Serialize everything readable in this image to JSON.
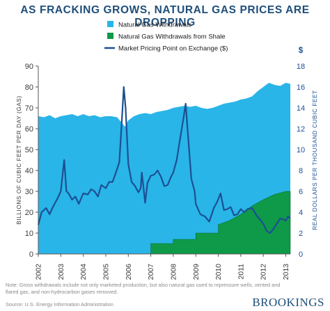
{
  "title": "AS FRACKING GROWS, NATURAL GAS PRICES ARE DROPPING",
  "legend": [
    {
      "label": "Natural Gas Withdrawals",
      "color": "#29b5e8",
      "kind": "box"
    },
    {
      "label": "Natural Gas Withdrawals from Shale",
      "color": "#0e9a48",
      "kind": "box"
    },
    {
      "label": "Market Pricing Point on Exchange ($)",
      "color": "#1c4f93",
      "kind": "line"
    }
  ],
  "footnote": "Note: Gross withdrawals include not only marketed production, but also natural gas used to repressure wells, vented and flared gas, and non-hydrocarbon gases removed.",
  "source": "Source: U.S. Energy Information Administration",
  "brand": "BROOKINGS",
  "chart_data": {
    "type": "area",
    "ylabel_left": "BILLIONS OF CUBIC FEET PER DAY (GAS)",
    "ylabel_right": "REAL DOLLARS PER THOUSAND CUBIC FEET",
    "right_axis_unit": "$",
    "xlim": [
      2002,
      2013.2
    ],
    "ylim_left": [
      0,
      90
    ],
    "ylim_right": [
      0,
      18
    ],
    "x_ticks": [
      "2002",
      "2003",
      "2004",
      "2005",
      "2006",
      "2007",
      "2008",
      "2009",
      "2010",
      "2011",
      "2012",
      "2013"
    ],
    "y_ticks_left": [
      0,
      10,
      20,
      30,
      40,
      50,
      60,
      70,
      80,
      90
    ],
    "y_ticks_right": [
      0,
      2,
      4,
      6,
      8,
      10,
      12,
      14,
      16,
      18
    ],
    "grid": false,
    "series": [
      {
        "name": "Natural Gas Withdrawals",
        "axis": "left",
        "color": "#29b5e8",
        "points": [
          [
            2002,
            66
          ],
          [
            2002.25,
            65.5
          ],
          [
            2002.5,
            66.5
          ],
          [
            2002.75,
            65
          ],
          [
            2003,
            66
          ],
          [
            2003.25,
            66.5
          ],
          [
            2003.5,
            67
          ],
          [
            2003.75,
            66
          ],
          [
            2004,
            67
          ],
          [
            2004.25,
            66
          ],
          [
            2004.5,
            66.5
          ],
          [
            2004.75,
            65.5
          ],
          [
            2005,
            66
          ],
          [
            2005.25,
            66
          ],
          [
            2005.5,
            65.5
          ],
          [
            2005.7,
            63
          ],
          [
            2005.85,
            61
          ],
          [
            2006,
            64
          ],
          [
            2006.25,
            66
          ],
          [
            2006.5,
            67
          ],
          [
            2006.75,
            67.5
          ],
          [
            2007,
            67
          ],
          [
            2007.25,
            68
          ],
          [
            2007.5,
            68.5
          ],
          [
            2007.75,
            69
          ],
          [
            2008,
            70
          ],
          [
            2008.25,
            70.5
          ],
          [
            2008.5,
            71
          ],
          [
            2008.75,
            70.5
          ],
          [
            2009,
            71
          ],
          [
            2009.25,
            70
          ],
          [
            2009.5,
            69.5
          ],
          [
            2009.75,
            70
          ],
          [
            2010,
            71
          ],
          [
            2010.25,
            72
          ],
          [
            2010.5,
            72.5
          ],
          [
            2010.75,
            73
          ],
          [
            2011,
            74
          ],
          [
            2011.25,
            74.5
          ],
          [
            2011.5,
            75.5
          ],
          [
            2011.75,
            78
          ],
          [
            2012,
            80
          ],
          [
            2012.25,
            82
          ],
          [
            2012.5,
            81
          ],
          [
            2012.75,
            80.5
          ],
          [
            2013,
            82
          ],
          [
            2013.2,
            81.5
          ]
        ]
      },
      {
        "name": "Natural Gas Withdrawals from Shale",
        "axis": "left",
        "color": "#0e9a48",
        "points": [
          [
            2007,
            0
          ],
          [
            2007,
            5
          ],
          [
            2008,
            5
          ],
          [
            2008,
            7
          ],
          [
            2009,
            7
          ],
          [
            2009,
            10
          ],
          [
            2010,
            10
          ],
          [
            2010,
            14
          ],
          [
            2010.5,
            16
          ],
          [
            2011,
            19
          ],
          [
            2011.5,
            23
          ],
          [
            2012,
            26
          ],
          [
            2012.5,
            28.5
          ],
          [
            2013,
            30
          ],
          [
            2013.2,
            30
          ]
        ]
      },
      {
        "name": "Market Pricing Point on Exchange ($)",
        "axis": "right",
        "color": "#1c4f93",
        "points": [
          [
            2002,
            2.8
          ],
          [
            2002.15,
            4
          ],
          [
            2002.35,
            4.4
          ],
          [
            2002.5,
            3.8
          ],
          [
            2002.65,
            4.5
          ],
          [
            2002.85,
            5.3
          ],
          [
            2003,
            6
          ],
          [
            2003.15,
            9
          ],
          [
            2003.25,
            6
          ],
          [
            2003.35,
            5.8
          ],
          [
            2003.5,
            5.2
          ],
          [
            2003.65,
            5.5
          ],
          [
            2003.8,
            4.8
          ],
          [
            2004,
            5.8
          ],
          [
            2004.2,
            5.7
          ],
          [
            2004.35,
            6.2
          ],
          [
            2004.5,
            6
          ],
          [
            2004.65,
            5.5
          ],
          [
            2004.8,
            6.6
          ],
          [
            2005,
            6.3
          ],
          [
            2005.15,
            6.9
          ],
          [
            2005.3,
            6.9
          ],
          [
            2005.45,
            7.8
          ],
          [
            2005.6,
            8.8
          ],
          [
            2005.72,
            13
          ],
          [
            2005.8,
            16
          ],
          [
            2005.88,
            14
          ],
          [
            2006,
            8.6
          ],
          [
            2006.15,
            6.9
          ],
          [
            2006.3,
            6.5
          ],
          [
            2006.45,
            5.9
          ],
          [
            2006.55,
            6.3
          ],
          [
            2006.6,
            7.8
          ],
          [
            2006.75,
            4.9
          ],
          [
            2006.85,
            6.8
          ],
          [
            2007,
            7.5
          ],
          [
            2007.15,
            7.6
          ],
          [
            2007.3,
            8
          ],
          [
            2007.45,
            7.4
          ],
          [
            2007.6,
            6.5
          ],
          [
            2007.75,
            6.6
          ],
          [
            2007.9,
            7.4
          ],
          [
            2008,
            7.8
          ],
          [
            2008.15,
            9
          ],
          [
            2008.3,
            11
          ],
          [
            2008.45,
            13
          ],
          [
            2008.55,
            14.4
          ],
          [
            2008.65,
            11.5
          ],
          [
            2008.8,
            7.2
          ],
          [
            2008.95,
            6
          ],
          [
            2009,
            4.8
          ],
          [
            2009.2,
            3.8
          ],
          [
            2009.4,
            3.6
          ],
          [
            2009.6,
            3.1
          ],
          [
            2009.8,
            4.4
          ],
          [
            2009.95,
            5
          ],
          [
            2010.1,
            5.8
          ],
          [
            2010.25,
            4.2
          ],
          [
            2010.4,
            4.3
          ],
          [
            2010.55,
            4.5
          ],
          [
            2010.7,
            3.7
          ],
          [
            2010.85,
            3.8
          ],
          [
            2011,
            4.3
          ],
          [
            2011.15,
            4
          ],
          [
            2011.3,
            4.3
          ],
          [
            2011.5,
            4.4
          ],
          [
            2011.7,
            3.7
          ],
          [
            2011.85,
            3.3
          ],
          [
            2012,
            2.9
          ],
          [
            2012.15,
            2.2
          ],
          [
            2012.3,
            2
          ],
          [
            2012.45,
            2.4
          ],
          [
            2012.6,
            2.9
          ],
          [
            2012.75,
            3.4
          ],
          [
            2012.9,
            3.3
          ],
          [
            2013,
            3.2
          ],
          [
            2013.1,
            3.6
          ],
          [
            2013.2,
            3.4
          ]
        ]
      }
    ]
  }
}
